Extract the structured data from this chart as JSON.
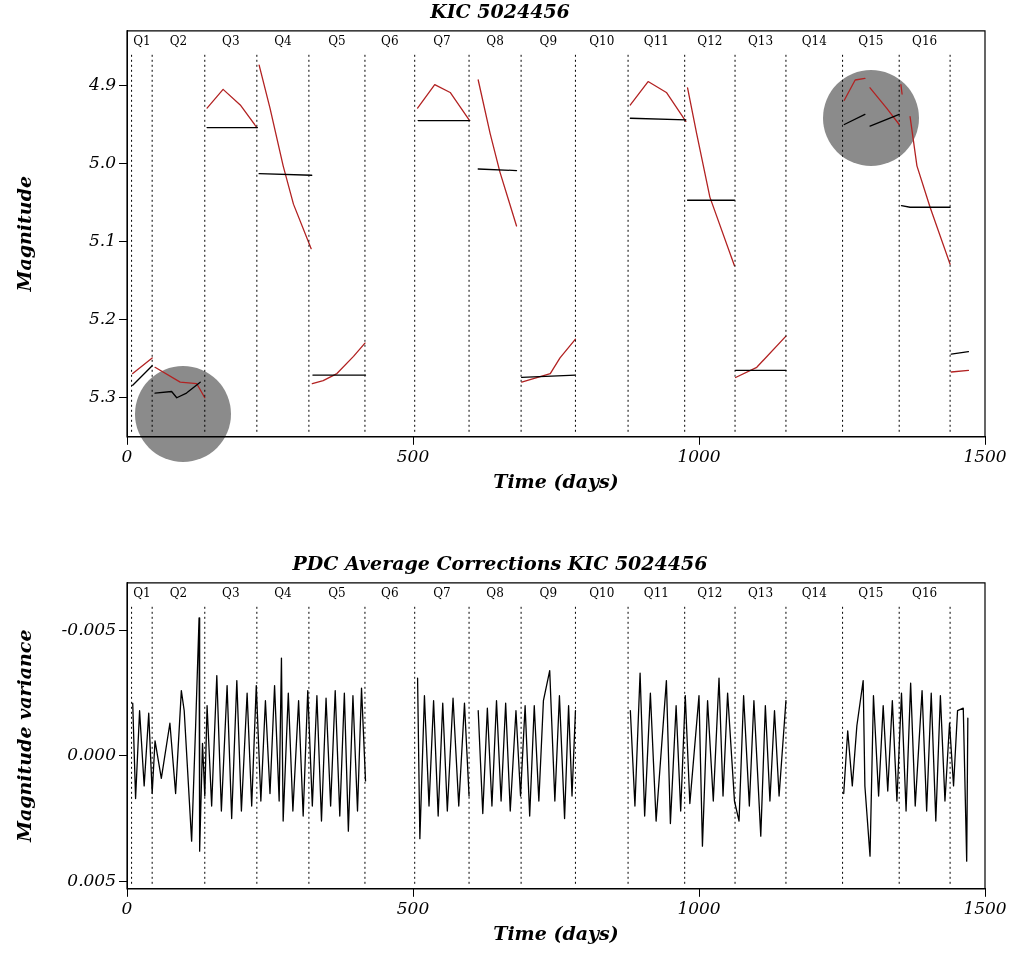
{
  "chart_data": [
    {
      "type": "line",
      "title": "KIC 5024456",
      "xlabel": "Time (days)",
      "ylabel": "Magnitude",
      "xlim": [
        0,
        1500
      ],
      "xticks": [
        0,
        500,
        1000,
        1500
      ],
      "ylim": [
        5.35,
        4.83
      ],
      "yticks": [
        4.9,
        {
          "value": 5,
          "label": "5.0"
        },
        5.1,
        5.2,
        5.3
      ],
      "grid": false,
      "legend": false,
      "ref_lines": [
        {
          "axis": "x",
          "value": 8,
          "line_style": "dotted"
        },
        {
          "axis": "x",
          "value": 44,
          "line_style": "dotted"
        },
        {
          "axis": "x",
          "value": 136,
          "line_style": "dotted"
        },
        {
          "axis": "x",
          "value": 227,
          "line_style": "dotted"
        },
        {
          "axis": "x",
          "value": 318,
          "line_style": "dotted"
        },
        {
          "axis": "x",
          "value": 416,
          "line_style": "dotted"
        },
        {
          "axis": "x",
          "value": 503,
          "line_style": "dotted"
        },
        {
          "axis": "x",
          "value": 598,
          "line_style": "dotted"
        },
        {
          "axis": "x",
          "value": 689,
          "line_style": "dotted"
        },
        {
          "axis": "x",
          "value": 784,
          "line_style": "dotted"
        },
        {
          "axis": "x",
          "value": 876,
          "line_style": "dotted"
        },
        {
          "axis": "x",
          "value": 975,
          "line_style": "dotted"
        },
        {
          "axis": "x",
          "value": 1063,
          "line_style": "dotted"
        },
        {
          "axis": "x",
          "value": 1152,
          "line_style": "dotted"
        },
        {
          "axis": "x",
          "value": 1251,
          "line_style": "dotted"
        },
        {
          "axis": "x",
          "value": 1350,
          "line_style": "dotted"
        },
        {
          "axis": "x",
          "value": 1439,
          "line_style": "dotted"
        }
      ],
      "annotations": [
        "Q1",
        "Q2",
        "Q3",
        "Q4",
        "Q5",
        "Q6",
        "Q7",
        "Q8",
        "Q9",
        "Q10",
        "Q11",
        "Q12",
        "Q13",
        "Q14",
        "Q15",
        "Q16"
      ],
      "series": [
        {
          "color": "#000000",
          "x": [
            10,
            44,
            45,
            49,
            78,
            87,
            104,
            128,
            129,
            140,
            228,
            229,
            231,
            323,
            324,
            325,
            417,
            418,
            509,
            599,
            600,
            614,
            681,
            682,
            690,
            784,
            785,
            880,
            977,
            978,
            980,
            1062,
            1063,
            1064,
            1152,
            1153,
            1254,
            1290,
            1291,
            1299,
            1350,
            1351,
            1354,
            1369,
            1439,
            1440,
            1441,
            1471
          ],
          "values": [
            5.284,
            5.259,
            null,
            5.294,
            5.292,
            5.3,
            5.294,
            5.28,
            null,
            4.954,
            4.954,
            null,
            5.013,
            5.015,
            null,
            5.271,
            5.271,
            null,
            4.945,
            4.945,
            null,
            5.007,
            5.009,
            null,
            5.274,
            5.271,
            null,
            4.942,
            4.944,
            null,
            5.047,
            5.047,
            null,
            5.265,
            5.265,
            null,
            4.95,
            4.937,
            null,
            4.952,
            4.937,
            null,
            5.054,
            5.056,
            5.056,
            null,
            5.244,
            5.241
          ]
        },
        {
          "color": "#b22222",
          "x": [
            10,
            44,
            45,
            49,
            93,
            122,
            136,
            137,
            140,
            168,
            198,
            227,
            228,
            231,
            250,
            273,
            291,
            322,
            323,
            324,
            343,
            367,
            396,
            416,
            417,
            508,
            538,
            565,
            599,
            600,
            614,
            635,
            652,
            681,
            682,
            690,
            740,
            757,
            784,
            785,
            880,
            911,
            943,
            977,
            978,
            980,
            996,
            1019,
            1062,
            1063,
            1064,
            1101,
            1152,
            1153,
            1254,
            1273,
            1290,
            1291,
            1299,
            1328,
            1350,
            1351,
            1353,
            1355,
            1356,
            1369,
            1381,
            1404,
            1439,
            1440,
            1441,
            1471
          ],
          "values": [
            5.269,
            5.249,
            null,
            5.261,
            5.28,
            5.282,
            5.3,
            null,
            4.929,
            4.905,
            4.925,
            4.954,
            null,
            4.874,
            4.929,
            5.003,
            5.052,
            5.109,
            null,
            5.282,
            5.278,
            5.269,
            5.247,
            5.23,
            null,
            4.929,
            4.899,
            4.909,
            4.945,
            null,
            4.893,
            4.962,
            5.011,
            5.08,
            null,
            5.28,
            5.269,
            5.249,
            5.225,
            null,
            4.925,
            4.895,
            4.909,
            4.946,
            null,
            4.903,
            4.962,
            5.043,
            5.131,
            null,
            5.274,
            5.261,
            5.221,
            null,
            4.919,
            4.893,
            4.891,
            null,
            4.903,
            4.929,
            4.95,
            null,
            4.899,
            4.911,
            null,
            4.94,
            5.003,
            5.056,
            5.129,
            null,
            5.267,
            5.265
          ]
        }
      ]
    },
    {
      "type": "line",
      "title": "PDC Average Corrections KIC 5024456",
      "xlabel": "Time (days)",
      "ylabel": "Magnitude variance",
      "xlim": [
        0,
        1500
      ],
      "xticks": [
        0,
        500,
        1000,
        1500
      ],
      "ylim": [
        0.0053,
        -0.0069
      ],
      "yticks": [
        -0.005,
        {
          "value": 0,
          "label": "0.000"
        },
        0.005
      ],
      "grid": false,
      "legend": false,
      "ref_lines": [
        {
          "axis": "x",
          "value": 8,
          "line_style": "dotted"
        },
        {
          "axis": "x",
          "value": 44,
          "line_style": "dotted"
        },
        {
          "axis": "x",
          "value": 136,
          "line_style": "dotted"
        },
        {
          "axis": "x",
          "value": 227,
          "line_style": "dotted"
        },
        {
          "axis": "x",
          "value": 318,
          "line_style": "dotted"
        },
        {
          "axis": "x",
          "value": 416,
          "line_style": "dotted"
        },
        {
          "axis": "x",
          "value": 503,
          "line_style": "dotted"
        },
        {
          "axis": "x",
          "value": 598,
          "line_style": "dotted"
        },
        {
          "axis": "x",
          "value": 689,
          "line_style": "dotted"
        },
        {
          "axis": "x",
          "value": 784,
          "line_style": "dotted"
        },
        {
          "axis": "x",
          "value": 876,
          "line_style": "dotted"
        },
        {
          "axis": "x",
          "value": 975,
          "line_style": "dotted"
        },
        {
          "axis": "x",
          "value": 1063,
          "line_style": "dotted"
        },
        {
          "axis": "x",
          "value": 1152,
          "line_style": "dotted"
        },
        {
          "axis": "x",
          "value": 1251,
          "line_style": "dotted"
        },
        {
          "axis": "x",
          "value": 1350,
          "line_style": "dotted"
        },
        {
          "axis": "x",
          "value": 1439,
          "line_style": "dotted"
        }
      ],
      "annotations": [
        "Q1",
        "Q2",
        "Q3",
        "Q4",
        "Q5",
        "Q6",
        "Q7",
        "Q8",
        "Q9",
        "Q10",
        "Q11",
        "Q12",
        "Q13",
        "Q14",
        "Q15",
        "Q16"
      ],
      "series": [
        {
          "color": "#000000",
          "x": [
            10,
            15,
            22,
            30,
            38,
            44,
            49,
            60,
            75,
            85,
            95,
            100,
            113,
            120,
            126,
            127,
            132,
            136,
            140,
            148,
            157,
            165,
            175,
            183,
            192,
            200,
            210,
            218,
            226,
            234,
            242,
            250,
            258,
            266,
            270,
            273,
            282,
            290,
            300,
            308,
            316,
            324,
            332,
            340,
            348,
            356,
            364,
            372,
            380,
            387,
            395,
            403,
            410,
            417,
            418,
            508,
            512,
            520,
            528,
            536,
            544,
            552,
            560,
            570,
            580,
            590,
            598,
            599,
            614,
            622,
            630,
            638,
            646,
            654,
            662,
            670,
            680,
            688,
            696,
            704,
            712,
            720,
            728,
            739,
            748,
            756,
            765,
            772,
            778,
            784,
            785,
            880,
            888,
            897,
            905,
            915,
            925,
            943,
            950,
            960,
            968,
            976,
            984,
            1000,
            1006,
            1015,
            1025,
            1035,
            1042,
            1050,
            1062,
            1070,
            1078,
            1088,
            1096,
            1108,
            1116,
            1124,
            1132,
            1140,
            1152,
            1153,
            1253,
            1260,
            1268,
            1276,
            1287,
            1290,
            1299,
            1305,
            1314,
            1322,
            1330,
            1338,
            1346,
            1354,
            1362,
            1370,
            1378,
            1390,
            1398,
            1406,
            1414,
            1422,
            1430,
            1438,
            1445,
            1452,
            1462,
            1468,
            1470
          ],
          "values": [
            -0.0021,
            0.0017,
            -0.0018,
            0.0012,
            -0.0017,
            0.0015,
            -0.0006,
            0.0009,
            -0.0013,
            0.0015,
            -0.0026,
            -0.0018,
            0.0034,
            -0.0012,
            -0.0055,
            0.0038,
            -0.0005,
            0.0016,
            -0.002,
            0.002,
            -0.0032,
            0.0022,
            -0.0028,
            0.0025,
            -0.003,
            0.0022,
            -0.0025,
            0.002,
            -0.0028,
            0.0018,
            -0.0022,
            0.0015,
            -0.0028,
            0.0018,
            -0.0039,
            0.0026,
            -0.0025,
            0.0022,
            -0.0022,
            0.0024,
            -0.0026,
            0.002,
            -0.0024,
            0.0026,
            -0.0023,
            0.002,
            -0.0026,
            0.0024,
            -0.0025,
            0.003,
            -0.0024,
            0.0022,
            -0.0027,
            0.001,
            null,
            -0.0031,
            0.0033,
            -0.0024,
            0.002,
            -0.0022,
            0.0024,
            -0.0021,
            0.0022,
            -0.0023,
            0.002,
            -0.0021,
            0.0016,
            null,
            -0.0018,
            0.0023,
            -0.0019,
            0.002,
            -0.0022,
            0.0018,
            -0.0021,
            0.0022,
            -0.0018,
            0.0016,
            -0.002,
            0.0024,
            -0.002,
            0.0018,
            -0.0022,
            -0.0034,
            0.0018,
            -0.0024,
            0.0025,
            -0.002,
            0.0016,
            -0.0018,
            null,
            -0.0018,
            0.002,
            -0.0033,
            0.0024,
            -0.0025,
            0.0026,
            -0.003,
            0.0027,
            -0.002,
            0.0022,
            -0.0024,
            0.0019,
            -0.0024,
            0.0036,
            -0.0022,
            0.0018,
            -0.0031,
            0.0016,
            -0.0025,
            0.0018,
            0.0026,
            -0.0024,
            0.002,
            -0.0022,
            0.0032,
            -0.002,
            0.0018,
            -0.0018,
            0.0016,
            -0.0022,
            null,
            0.0015,
            -0.001,
            0.0012,
            -0.0012,
            -0.003,
            0.0012,
            0.004,
            -0.0024,
            0.0016,
            -0.002,
            0.0014,
            -0.0022,
            0.0018,
            -0.0025,
            0.0022,
            -0.0029,
            0.002,
            -0.0026,
            0.0022,
            -0.0025,
            0.0026,
            -0.0024,
            0.0018,
            -0.0013,
            0.0012,
            -0.0018,
            -0.0019,
            0.0042,
            -0.0015
          ]
        }
      ]
    }
  ]
}
